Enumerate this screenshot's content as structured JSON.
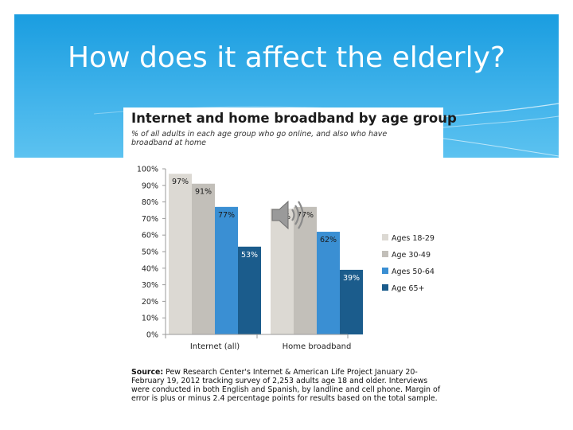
{
  "slide": {
    "title": "How does it affect the elderly?"
  },
  "chart_data": {
    "type": "bar",
    "title": "Internet and home broadband by age group",
    "subtitle": "% of all adults in each age group who go online, and also who have broadband at home",
    "categories": [
      "Internet (all)",
      "Home broadband"
    ],
    "series": [
      {
        "name": "Ages 18-29",
        "values": [
          97,
          76
        ],
        "labels": [
          "97%",
          "76%"
        ],
        "color": "#dcd9d3"
      },
      {
        "name": "Age 30-49",
        "values": [
          91,
          77
        ],
        "labels": [
          "91%",
          "77%"
        ],
        "color": "#c2bfb9"
      },
      {
        "name": "Ages 50-64",
        "values": [
          77,
          62
        ],
        "labels": [
          "77%",
          "62%"
        ],
        "color": "#3a8fd3"
      },
      {
        "name": "Age 65+",
        "values": [
          53,
          39
        ],
        "labels": [
          "53%",
          "39%"
        ],
        "color": "#1b5c8c"
      }
    ],
    "label_colors": [
      "#1b1b1b",
      "#1b1b1b",
      "#1b1b1b",
      "#ffffff"
    ],
    "y_ticks": [
      "0%",
      "10%",
      "20%",
      "30%",
      "40%",
      "50%",
      "60%",
      "70%",
      "80%",
      "90%",
      "100%"
    ],
    "ylim": [
      0,
      100
    ],
    "grid": false,
    "legend_position": "right"
  },
  "source": {
    "label": "Source:",
    "text": "Pew Research Center's Internet & American Life Project January 20-February 19, 2012 tracking survey of 2,253 adults age 18 and older. Interviews were conducted in both English and Spanish, by landline and cell phone. Margin of error is plus or minus 2.4 percentage points for results based on the total sample."
  },
  "icons": {
    "audio": "speaker-icon"
  }
}
